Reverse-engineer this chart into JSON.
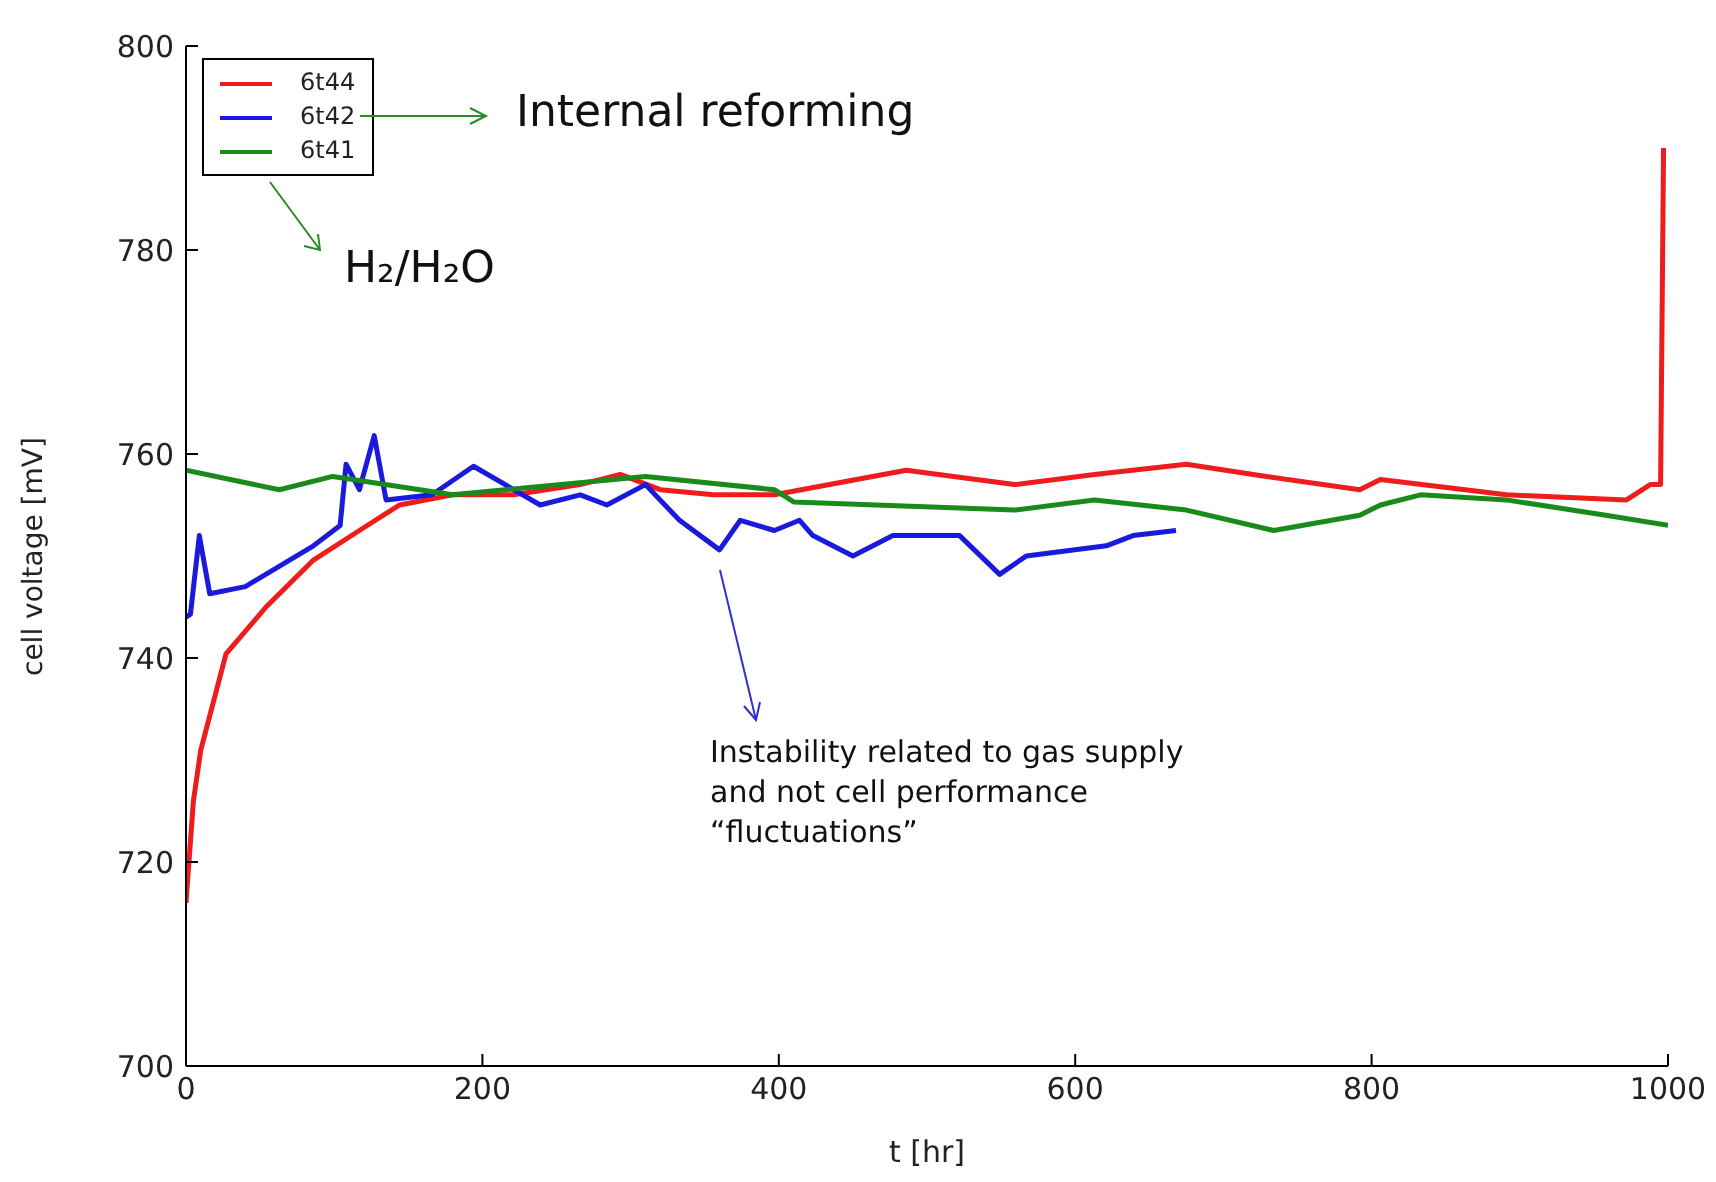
{
  "chart_data": {
    "type": "line",
    "xlabel": "t [hr]",
    "ylabel": "cell voltage [mV]",
    "xlim": [
      0,
      1000
    ],
    "xticks": [
      0,
      200,
      400,
      600,
      800,
      1000
    ],
    "ylim": [
      700,
      800
    ],
    "yticks": [
      700,
      720,
      740,
      760,
      780,
      800
    ],
    "grid": false,
    "legend": "top left",
    "annotations": [
      "Internal reforming",
      "H₂/H₂O",
      "Instability related to gas supply\nand not cell performance\n“fluctuations”"
    ],
    "series": [
      {
        "name": "6t44",
        "color": "#ee1c1c",
        "x": [
          0,
          5,
          10,
          27,
          54,
          86,
          117,
          144,
          180,
          221,
          266,
          293,
          320,
          356,
          397,
          486,
          559,
          613,
          675,
          729,
          792,
          806,
          891,
          972,
          988,
          995,
          997
        ],
        "values": [
          716,
          726,
          731,
          740.4,
          745,
          749.6,
          752.5,
          755,
          756,
          756,
          757,
          758,
          756.5,
          756,
          756,
          758.4,
          757,
          758,
          759,
          757.8,
          756.5,
          757.5,
          756,
          755.5,
          757,
          757,
          790
        ]
      },
      {
        "name": "6t42",
        "color": "#1a1adc",
        "x": [
          0,
          3,
          9,
          16,
          40,
          86,
          104,
          108,
          117,
          127,
          135,
          166,
          194,
          239,
          266,
          284,
          310,
          333,
          360,
          374,
          397,
          414,
          423,
          450,
          477,
          522,
          549,
          567,
          621,
          639,
          668
        ],
        "values": [
          744,
          744.3,
          752,
          746.3,
          747,
          751,
          753,
          759,
          756.5,
          761.8,
          755.5,
          756,
          758.8,
          755,
          756,
          755,
          757,
          753.5,
          750.6,
          753.5,
          752.5,
          753.5,
          752,
          750,
          752,
          752,
          748.2,
          750,
          751,
          752,
          752.5
        ]
      },
      {
        "name": "6t41",
        "color": "#1a8a1a",
        "x": [
          0,
          63,
          99,
          180,
          310,
          397,
          410,
          559,
          613,
          675,
          734,
          792,
          806,
          833,
          891,
          958,
          1000
        ],
        "values": [
          758.4,
          756.5,
          757.8,
          756,
          757.8,
          756.5,
          755.3,
          754.5,
          755.5,
          754.5,
          752.5,
          754,
          755,
          756,
          755.5,
          754,
          753
        ]
      }
    ]
  }
}
